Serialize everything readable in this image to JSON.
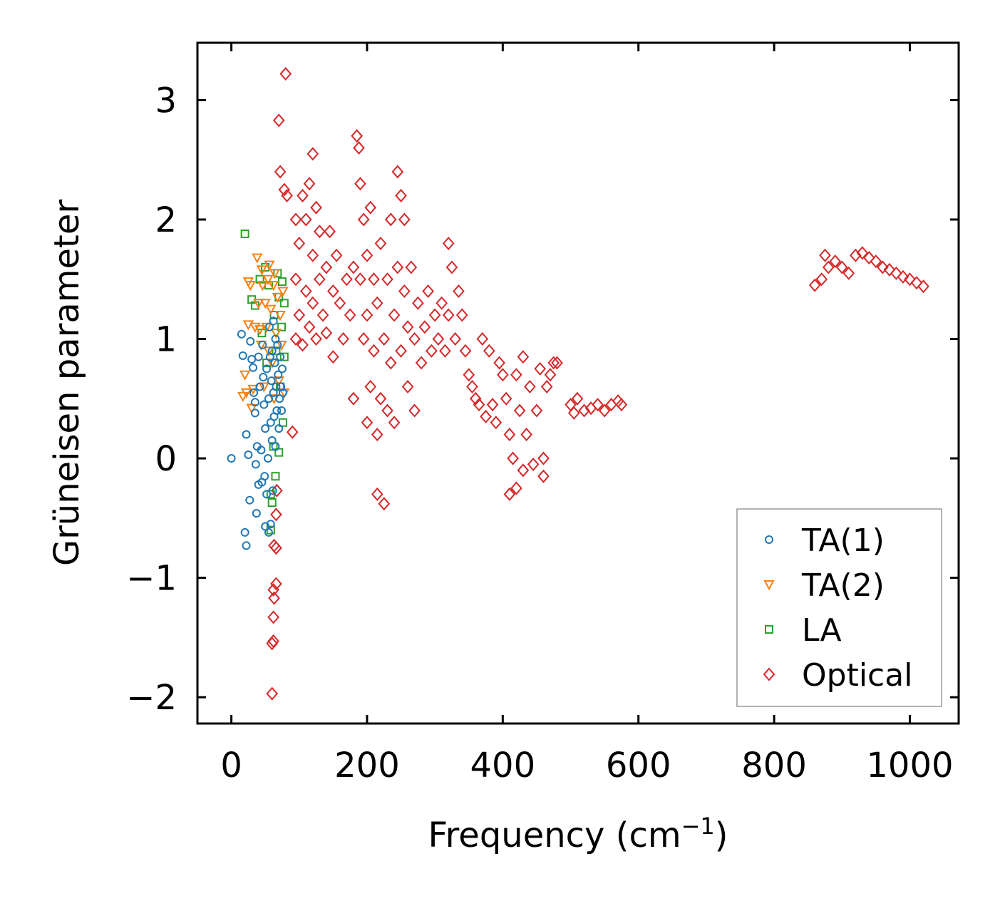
{
  "chart_data": {
    "type": "scatter",
    "title": "",
    "xlabel": "Frequency (cm",
    "xlabel_sup": "−1",
    "xlabel_end": ")",
    "ylabel": "Grüneisen parameter",
    "xlim": [
      -50,
      1072
    ],
    "ylim": [
      -2.22,
      3.48
    ],
    "xticks": [
      0,
      200,
      400,
      600,
      800,
      1000
    ],
    "xtick_labels": [
      "0",
      "200",
      "400",
      "600",
      "800",
      "1000"
    ],
    "yticks": [
      -2,
      -1,
      0,
      1,
      2,
      3
    ],
    "ytick_labels": [
      "−2",
      "−1",
      "0",
      "1",
      "2",
      "3"
    ],
    "grid": false,
    "legend_position": "bottom-right",
    "series": [
      {
        "name": "TA(1)",
        "marker": "circle",
        "color": "#1f77b4",
        "points": [
          [
            0,
            0
          ],
          [
            15,
            1.04
          ],
          [
            17,
            0.86
          ],
          [
            20,
            -0.62
          ],
          [
            22,
            -0.73
          ],
          [
            22,
            0.2
          ],
          [
            25,
            0.03
          ],
          [
            27,
            -0.35
          ],
          [
            28,
            0.98
          ],
          [
            30,
            0.83
          ],
          [
            32,
            0.76
          ],
          [
            33,
            0.55
          ],
          [
            35,
            0.47
          ],
          [
            35,
            0.38
          ],
          [
            36,
            -0.05
          ],
          [
            37,
            -0.46
          ],
          [
            38,
            0.1
          ],
          [
            40,
            -0.22
          ],
          [
            40,
            0.85
          ],
          [
            42,
            0.6
          ],
          [
            44,
            0.07
          ],
          [
            45,
            -0.2
          ],
          [
            46,
            0.95
          ],
          [
            47,
            0.68
          ],
          [
            48,
            0.45
          ],
          [
            49,
            -0.15
          ],
          [
            50,
            0.25
          ],
          [
            50,
            -0.57
          ],
          [
            52,
            0.75
          ],
          [
            52,
            -0.3
          ],
          [
            54,
            0.0
          ],
          [
            55,
            -0.62
          ],
          [
            55,
            0.5
          ],
          [
            56,
            1.1
          ],
          [
            57,
            0.85
          ],
          [
            58,
            0.3
          ],
          [
            58,
            -0.55
          ],
          [
            59,
            0.65
          ],
          [
            60,
            0.9
          ],
          [
            60,
            0.15
          ],
          [
            61,
            -0.27
          ],
          [
            62,
            1.15
          ],
          [
            62,
            0.55
          ],
          [
            63,
            0.35
          ],
          [
            64,
            0.8
          ],
          [
            65,
            1.0
          ],
          [
            65,
            0.1
          ],
          [
            66,
            0.6
          ],
          [
            67,
            0.4
          ],
          [
            68,
            0.95
          ],
          [
            69,
            0.7
          ],
          [
            70,
            0.25
          ],
          [
            71,
            0.5
          ],
          [
            72,
            0.85
          ],
          [
            73,
            0.6
          ],
          [
            74,
            0.4
          ],
          [
            75,
            0.75
          ],
          [
            76,
            0.55
          ]
        ]
      },
      {
        "name": "TA(2)",
        "marker": "triangle-down",
        "color": "#ff7f0e",
        "points": [
          [
            17,
            0.52
          ],
          [
            20,
            0.7
          ],
          [
            22,
            0.55
          ],
          [
            25,
            1.48
          ],
          [
            25,
            1.12
          ],
          [
            28,
            1.45
          ],
          [
            30,
            0.42
          ],
          [
            32,
            0.58
          ],
          [
            35,
            1.1
          ],
          [
            38,
            1.68
          ],
          [
            40,
            1.3
          ],
          [
            42,
            1.08
          ],
          [
            44,
            0.95
          ],
          [
            45,
            1.58
          ],
          [
            46,
            1.45
          ],
          [
            48,
            0.6
          ],
          [
            50,
            1.3
          ],
          [
            52,
            1.1
          ],
          [
            54,
            1.5
          ],
          [
            55,
            0.9
          ],
          [
            56,
            1.62
          ],
          [
            58,
            1.25
          ],
          [
            60,
            0.8
          ],
          [
            62,
            1.45
          ],
          [
            63,
            0.5
          ],
          [
            64,
            1.55
          ],
          [
            66,
            1.05
          ],
          [
            68,
            1.35
          ],
          [
            70,
            0.65
          ],
          [
            72,
            1.2
          ],
          [
            74,
            0.95
          ],
          [
            76,
            1.4
          ],
          [
            78,
            0.55
          ]
        ]
      },
      {
        "name": "LA",
        "marker": "square",
        "color": "#2ca02c",
        "points": [
          [
            20,
            1.88
          ],
          [
            30,
            1.33
          ],
          [
            35,
            1.28
          ],
          [
            42,
            1.5
          ],
          [
            45,
            1.05
          ],
          [
            50,
            1.6
          ],
          [
            52,
            0.8
          ],
          [
            55,
            1.45
          ],
          [
            58,
            -0.3
          ],
          [
            58,
            -0.6
          ],
          [
            60,
            -0.37
          ],
          [
            62,
            0.1
          ],
          [
            63,
            1.2
          ],
          [
            65,
            -0.15
          ],
          [
            66,
            0.9
          ],
          [
            68,
            1.55
          ],
          [
            70,
            0.05
          ],
          [
            70,
            1.35
          ],
          [
            72,
            0.6
          ],
          [
            74,
            1.1
          ],
          [
            75,
            1.48
          ],
          [
            76,
            0.3
          ],
          [
            78,
            0.85
          ],
          [
            78,
            1.3
          ]
        ]
      },
      {
        "name": "Optical",
        "marker": "diamond",
        "color": "#d62728",
        "points": [
          [
            80,
            3.22
          ],
          [
            70,
            2.83
          ],
          [
            72,
            2.4
          ],
          [
            78,
            2.25
          ],
          [
            82,
            2.2
          ],
          [
            60,
            -1.97
          ],
          [
            60,
            -1.55
          ],
          [
            62,
            -1.53
          ],
          [
            62,
            -1.33
          ],
          [
            63,
            -1.17
          ],
          [
            62,
            -1.1
          ],
          [
            66,
            -1.05
          ],
          [
            66,
            -0.75
          ],
          [
            63,
            -0.73
          ],
          [
            66,
            -0.47
          ],
          [
            67,
            -0.27
          ],
          [
            90,
            0.22
          ],
          [
            95,
            1.0
          ],
          [
            95,
            1.5
          ],
          [
            95,
            2.0
          ],
          [
            100,
            1.2
          ],
          [
            100,
            1.8
          ],
          [
            105,
            2.2
          ],
          [
            105,
            0.95
          ],
          [
            110,
            1.4
          ],
          [
            110,
            2.0
          ],
          [
            115,
            2.3
          ],
          [
            115,
            1.1
          ],
          [
            120,
            2.55
          ],
          [
            120,
            1.7
          ],
          [
            120,
            1.3
          ],
          [
            125,
            1.0
          ],
          [
            125,
            2.1
          ],
          [
            130,
            1.5
          ],
          [
            130,
            1.9
          ],
          [
            135,
            1.2
          ],
          [
            140,
            1.6
          ],
          [
            140,
            1.05
          ],
          [
            145,
            1.9
          ],
          [
            150,
            0.85
          ],
          [
            150,
            1.4
          ],
          [
            155,
            1.7
          ],
          [
            160,
            1.3
          ],
          [
            165,
            1.0
          ],
          [
            170,
            1.5
          ],
          [
            175,
            1.2
          ],
          [
            180,
            0.5
          ],
          [
            180,
            1.6
          ],
          [
            185,
            2.7
          ],
          [
            188,
            2.6
          ],
          [
            190,
            2.3
          ],
          [
            190,
            1.5
          ],
          [
            195,
            1.0
          ],
          [
            195,
            2.0
          ],
          [
            200,
            0.3
          ],
          [
            200,
            1.2
          ],
          [
            200,
            1.7
          ],
          [
            205,
            0.6
          ],
          [
            205,
            2.1
          ],
          [
            210,
            0.9
          ],
          [
            210,
            1.5
          ],
          [
            215,
            -0.3
          ],
          [
            215,
            0.2
          ],
          [
            215,
            1.3
          ],
          [
            220,
            0.5
          ],
          [
            220,
            1.8
          ],
          [
            225,
            -0.38
          ],
          [
            225,
            1.0
          ],
          [
            230,
            0.4
          ],
          [
            230,
            1.5
          ],
          [
            235,
            2.0
          ],
          [
            235,
            0.8
          ],
          [
            240,
            1.2
          ],
          [
            240,
            0.3
          ],
          [
            245,
            2.4
          ],
          [
            245,
            1.6
          ],
          [
            250,
            0.9
          ],
          [
            250,
            2.2
          ],
          [
            255,
            1.4
          ],
          [
            255,
            2.0
          ],
          [
            260,
            0.6
          ],
          [
            260,
            1.1
          ],
          [
            265,
            1.6
          ],
          [
            270,
            0.4
          ],
          [
            270,
            1.0
          ],
          [
            275,
            1.3
          ],
          [
            280,
            0.8
          ],
          [
            285,
            1.1
          ],
          [
            290,
            1.4
          ],
          [
            295,
            0.9
          ],
          [
            300,
            1.2
          ],
          [
            305,
            1.0
          ],
          [
            310,
            1.3
          ],
          [
            315,
            0.9
          ],
          [
            320,
            1.8
          ],
          [
            320,
            1.2
          ],
          [
            325,
            1.6
          ],
          [
            330,
            1.0
          ],
          [
            335,
            1.4
          ],
          [
            340,
            1.2
          ],
          [
            345,
            0.9
          ],
          [
            350,
            0.7
          ],
          [
            355,
            0.6
          ],
          [
            360,
            0.5
          ],
          [
            365,
            0.45
          ],
          [
            370,
            1.0
          ],
          [
            375,
            0.35
          ],
          [
            380,
            0.9
          ],
          [
            385,
            0.45
          ],
          [
            390,
            0.3
          ],
          [
            395,
            0.8
          ],
          [
            400,
            0.7
          ],
          [
            405,
            0.5
          ],
          [
            410,
            0.2
          ],
          [
            410,
            -0.3
          ],
          [
            415,
            0.0
          ],
          [
            420,
            0.7
          ],
          [
            420,
            -0.25
          ],
          [
            425,
            0.4
          ],
          [
            430,
            -0.1
          ],
          [
            430,
            0.85
          ],
          [
            435,
            0.2
          ],
          [
            440,
            0.6
          ],
          [
            445,
            -0.05
          ],
          [
            450,
            0.4
          ],
          [
            455,
            0.75
          ],
          [
            460,
            0.0
          ],
          [
            460,
            -0.15
          ],
          [
            465,
            0.6
          ],
          [
            470,
            0.7
          ],
          [
            475,
            0.8
          ],
          [
            480,
            0.8
          ],
          [
            500,
            0.45
          ],
          [
            505,
            0.38
          ],
          [
            510,
            0.5
          ],
          [
            520,
            0.4
          ],
          [
            530,
            0.42
          ],
          [
            540,
            0.45
          ],
          [
            550,
            0.4
          ],
          [
            560,
            0.45
          ],
          [
            570,
            0.48
          ],
          [
            575,
            0.45
          ],
          [
            860,
            1.45
          ],
          [
            870,
            1.5
          ],
          [
            875,
            1.7
          ],
          [
            880,
            1.6
          ],
          [
            890,
            1.65
          ],
          [
            900,
            1.6
          ],
          [
            910,
            1.55
          ],
          [
            920,
            1.7
          ],
          [
            930,
            1.72
          ],
          [
            940,
            1.68
          ],
          [
            950,
            1.65
          ],
          [
            960,
            1.6
          ],
          [
            970,
            1.58
          ],
          [
            980,
            1.55
          ],
          [
            990,
            1.52
          ],
          [
            1000,
            1.5
          ],
          [
            1010,
            1.47
          ],
          [
            1020,
            1.44
          ]
        ]
      }
    ]
  }
}
